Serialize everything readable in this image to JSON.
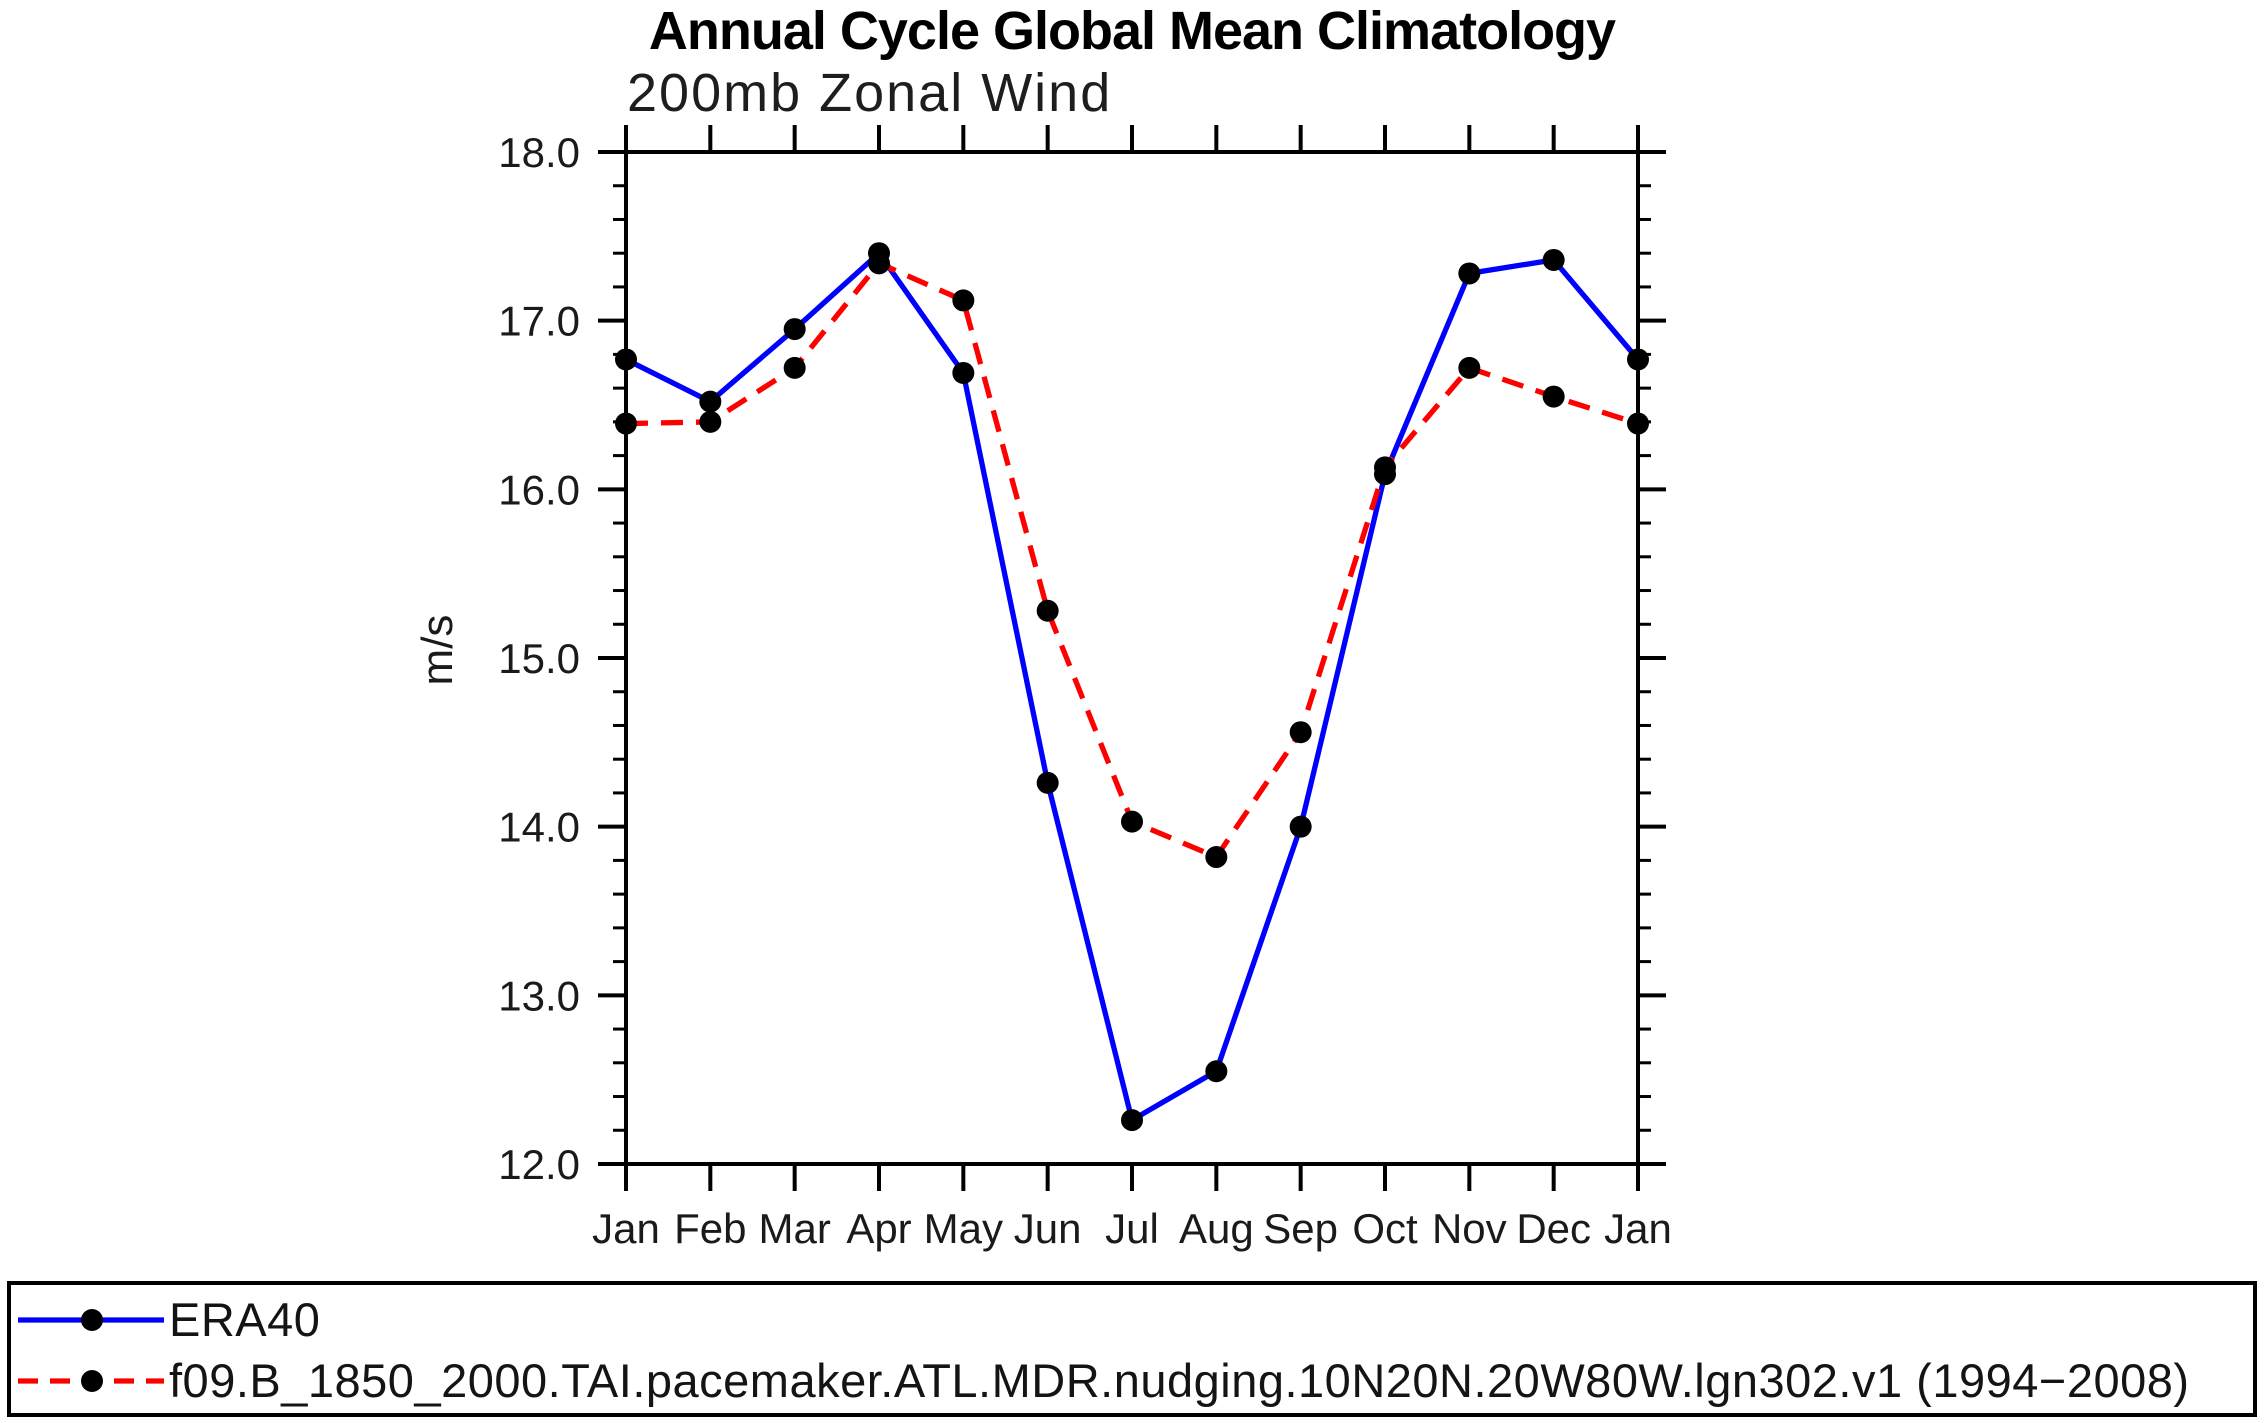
{
  "chart_data": {
    "type": "line",
    "title": "Annual Cycle Global Mean Climatology",
    "subtitle": "200mb Zonal Wind",
    "ylabel": "m/s",
    "xlabel": "",
    "categories": [
      "Jan",
      "Feb",
      "Mar",
      "Apr",
      "May",
      "Jun",
      "Jul",
      "Aug",
      "Sep",
      "Oct",
      "Nov",
      "Dec",
      "Jan"
    ],
    "ylim": [
      12.0,
      18.0
    ],
    "ytick_major_step": 1.0,
    "ytick_minor_step": 0.2,
    "ytick_labels": [
      "12.0",
      "13.0",
      "14.0",
      "15.0",
      "16.0",
      "17.0",
      "18.0"
    ],
    "grid": false,
    "frame": "box-with-outward-ticks",
    "legend_position": "bottom-box-full-width",
    "axis_color": "#000000",
    "series": [
      {
        "name": "ERA40",
        "color": "#0000ff",
        "line_style": "solid",
        "marker": "filled-circle",
        "marker_color": "#000000",
        "values": [
          16.77,
          16.52,
          16.95,
          17.4,
          16.69,
          14.26,
          12.26,
          12.55,
          14.0,
          16.09,
          17.28,
          17.36,
          16.77
        ]
      },
      {
        "name": "f09.B_1850_2000.TAI.pacemaker.ATL.MDR.nudging.10N20N.20W80W.lgn302.v1 (1994−2008)",
        "color": "#ff0000",
        "line_style": "dashed",
        "marker": "filled-circle",
        "marker_color": "#000000",
        "values": [
          16.39,
          16.4,
          16.72,
          17.34,
          17.12,
          15.28,
          14.03,
          13.82,
          14.56,
          16.13,
          16.72,
          16.55,
          16.39
        ]
      }
    ]
  }
}
